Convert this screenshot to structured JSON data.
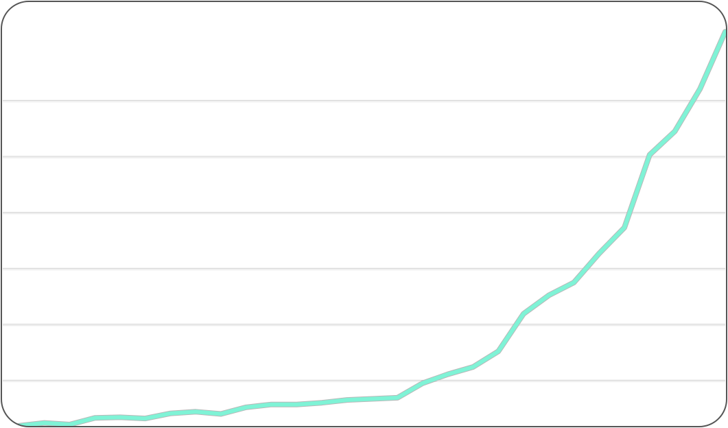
{
  "chart_data": {
    "type": "line",
    "title": "",
    "xlabel": "",
    "ylabel": "",
    "grid": true,
    "legend": "none",
    "ylim": [
      0,
      70
    ],
    "gridlines_y": [
      10,
      20,
      30,
      40,
      50,
      60
    ],
    "x": [
      1,
      2,
      3,
      4,
      5,
      6,
      7,
      8,
      9,
      10,
      11,
      12,
      13,
      14,
      15,
      16,
      17,
      18,
      19,
      20,
      21,
      22,
      23,
      24,
      25,
      26,
      27,
      28,
      29
    ],
    "series": [
      {
        "values": [
          2.0,
          2.5,
          2.2,
          3.4,
          3.5,
          3.3,
          4.2,
          4.5,
          4.1,
          5.3,
          5.8,
          5.8,
          6.1,
          6.6,
          6.8,
          7.0,
          9.6,
          11.2,
          12.5,
          15.3,
          22.0,
          25.3,
          27.6,
          32.8,
          37.4,
          50.4,
          54.6,
          62.2,
          72.4
        ],
        "color": "#7ff3d6"
      }
    ],
    "colors": {
      "line": "#7ff3d6",
      "line_edge": "#b8b8b8",
      "grid": "#cccccc",
      "border": "#555555",
      "background": "#ffffff"
    }
  }
}
